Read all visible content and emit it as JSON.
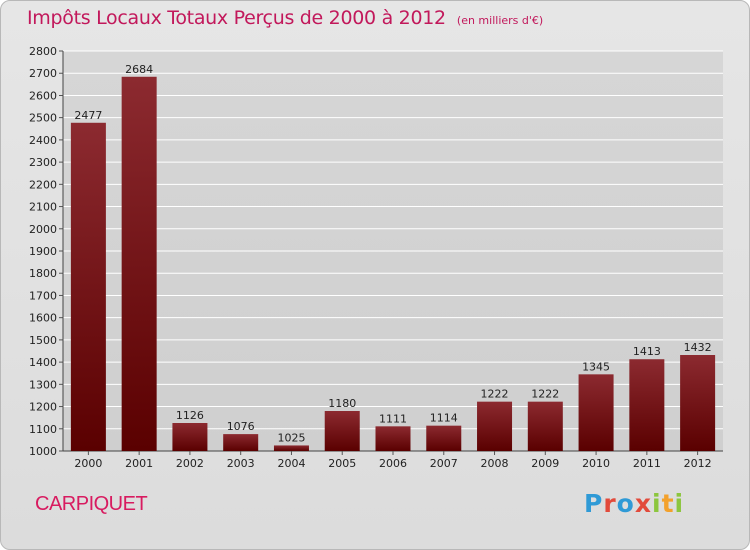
{
  "header": {
    "title": "Impôts Locaux Totaux Perçus de 2000 à 2012",
    "subtitle": "(en milliers d'€)"
  },
  "footer": {
    "commune": "CARPIQUET",
    "logo": "Proxiti"
  },
  "colors": {
    "title": "#c2185b",
    "bar_top": "#8c2a30",
    "bar_bottom": "#5a0000",
    "grid": "#ffffff"
  },
  "chart_data": {
    "type": "bar",
    "title": "Impôts Locaux Totaux Perçus de 2000 à 2012",
    "subtitle": "(en milliers d'€)",
    "categories": [
      "2000",
      "2001",
      "2002",
      "2003",
      "2004",
      "2005",
      "2006",
      "2007",
      "2008",
      "2009",
      "2010",
      "2011",
      "2012"
    ],
    "values": [
      2477,
      2684,
      1126,
      1076,
      1025,
      1180,
      1111,
      1114,
      1222,
      1222,
      1345,
      1413,
      1432
    ],
    "ylim": [
      1000,
      2800
    ],
    "ytick_step": 100,
    "grid": true,
    "xlabel": "",
    "ylabel": ""
  }
}
